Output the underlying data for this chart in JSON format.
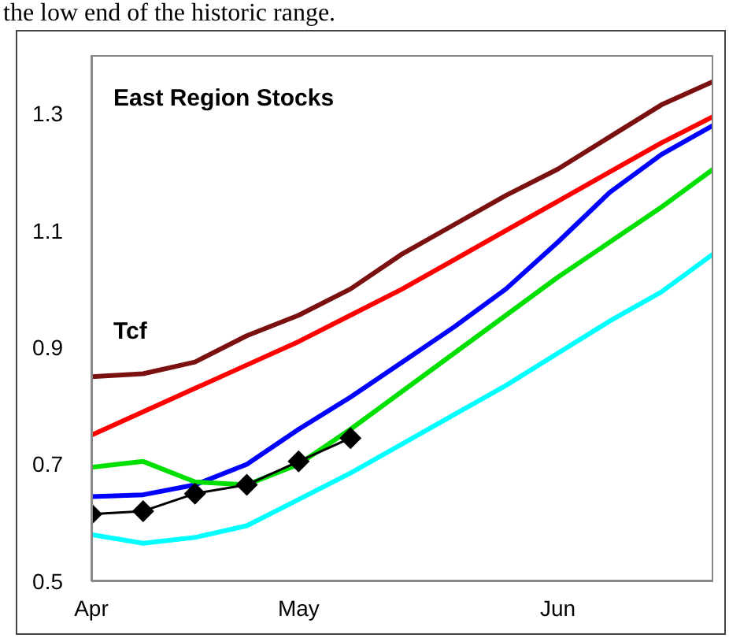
{
  "chart_data": {
    "type": "line",
    "title": "East Region Stocks",
    "ylabel": "Tcf",
    "annotations": [
      "the low end of the historic range."
    ],
    "categories": [
      "Apr",
      null,
      null,
      null,
      "May",
      null,
      null,
      null,
      null,
      "Jun",
      null,
      null,
      null
    ],
    "ylim": [
      0.5,
      1.4
    ],
    "yticks": [
      0.5,
      0.7,
      0.9,
      1.1,
      1.3
    ],
    "grid": false,
    "legend": false,
    "series": [
      {
        "color": "#7b1010",
        "marker": "none",
        "values": [
          0.85,
          0.855,
          0.875,
          0.92,
          0.955,
          1.0,
          1.06,
          1.11,
          1.16,
          1.205,
          1.26,
          1.315,
          1.355
        ]
      },
      {
        "color": "#ff0000",
        "marker": "none",
        "values": [
          0.75,
          0.79,
          0.83,
          0.87,
          0.91,
          0.955,
          1.0,
          1.05,
          1.1,
          1.15,
          1.2,
          1.25,
          1.295
        ]
      },
      {
        "color": "#0000ff",
        "marker": "none",
        "values": [
          0.645,
          0.648,
          0.665,
          0.7,
          0.76,
          0.815,
          0.875,
          0.935,
          1.0,
          1.08,
          1.165,
          1.23,
          1.28
        ]
      },
      {
        "color": "#00e000",
        "marker": "none",
        "values": [
          0.695,
          0.705,
          0.67,
          0.665,
          0.7,
          0.76,
          0.825,
          0.89,
          0.955,
          1.02,
          1.08,
          1.14,
          1.205
        ]
      },
      {
        "color": "#00ffff",
        "marker": "none",
        "values": [
          0.58,
          0.565,
          0.575,
          0.595,
          0.64,
          0.685,
          0.735,
          0.785,
          0.835,
          0.89,
          0.945,
          0.995,
          1.06
        ]
      },
      {
        "color": "#000000",
        "marker": "diamond",
        "values": [
          0.615,
          0.62,
          0.65,
          0.665,
          0.705,
          0.745,
          null,
          null,
          null,
          null,
          null,
          null,
          null
        ]
      }
    ]
  }
}
